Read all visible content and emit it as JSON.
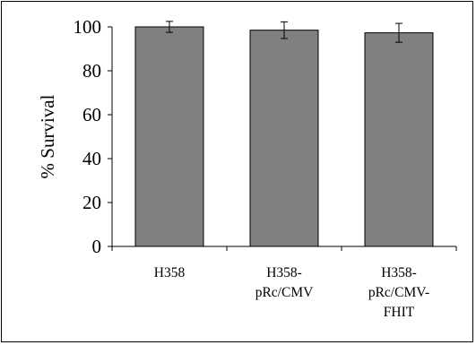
{
  "chart_data": {
    "type": "bar",
    "title": "",
    "xlabel": "",
    "ylabel": "% Survival",
    "ylim": [
      0,
      100
    ],
    "yticks": [
      0,
      20,
      40,
      60,
      80,
      100
    ],
    "grid": false,
    "legend": "none",
    "categories": [
      [
        "H358"
      ],
      [
        "H358-",
        "pRc/CMV"
      ],
      [
        "H358-",
        "pRc/CMV-",
        "FHIT"
      ]
    ],
    "series": [
      {
        "values": [
          100,
          98.5,
          97.3
        ],
        "errors": [
          2.5,
          3.8,
          4.3
        ],
        "color": "#808080"
      }
    ]
  }
}
